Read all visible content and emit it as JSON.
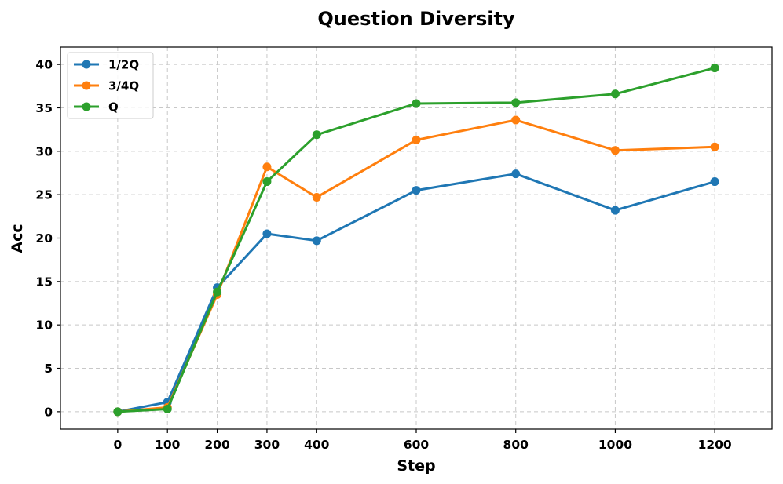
{
  "chart_data": {
    "type": "line",
    "title": "Question Diversity",
    "xlabel": "Step",
    "ylabel": "Acc",
    "x": [
      0,
      100,
      200,
      300,
      400,
      600,
      800,
      1000,
      1200
    ],
    "x_tick_labels": [
      "0",
      "100",
      "200",
      "300",
      "400",
      "600",
      "800",
      "1000",
      "1200"
    ],
    "y_ticks": [
      0,
      5,
      10,
      15,
      20,
      25,
      30,
      35,
      40
    ],
    "y_tick_labels": [
      "0",
      "5",
      "10",
      "15",
      "20",
      "25",
      "30",
      "35",
      "40"
    ],
    "ylim": [
      -2,
      42
    ],
    "grid": true,
    "legend_position": "top-left",
    "series": [
      {
        "name": "1/2Q",
        "color": "#1f77b4",
        "values": [
          0.0,
          1.1,
          14.3,
          20.5,
          19.7,
          25.5,
          27.4,
          23.2,
          26.5
        ]
      },
      {
        "name": "3/4Q",
        "color": "#ff7f0e",
        "values": [
          0.0,
          0.5,
          13.5,
          28.2,
          24.7,
          31.3,
          33.6,
          30.1,
          30.5
        ]
      },
      {
        "name": "Q",
        "color": "#2ca02c",
        "values": [
          0.0,
          0.3,
          13.8,
          26.5,
          31.9,
          35.5,
          35.6,
          36.6,
          39.6
        ]
      }
    ]
  }
}
